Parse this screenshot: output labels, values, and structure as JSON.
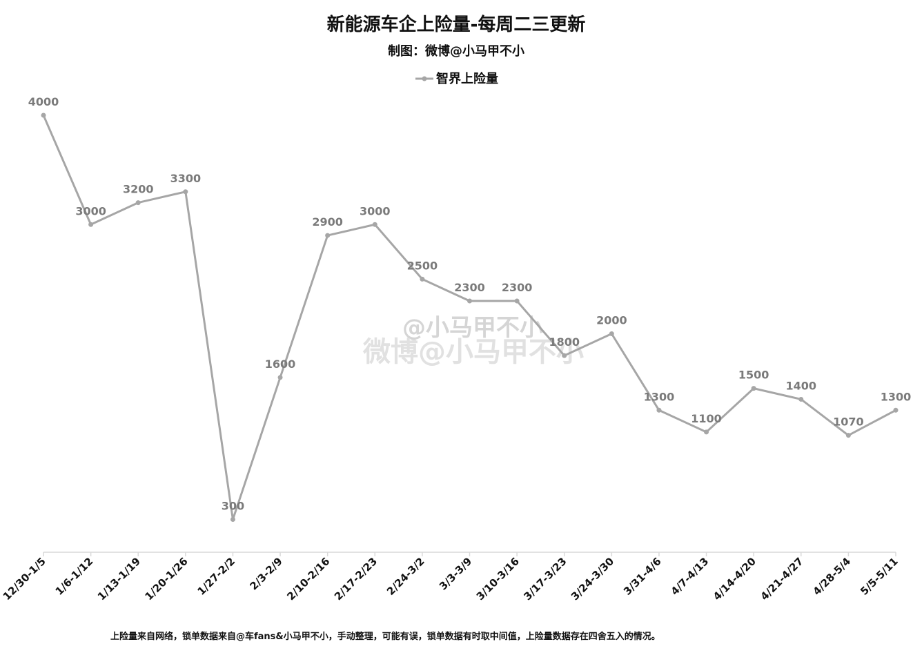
{
  "title": "新能源车企上险量-每周二三更新",
  "subtitle": "制图：微博@小马甲不小",
  "footnote": "上险量来自网络，锁单数据来自@车fans&小马甲不小，手动整理，可能有误，锁单数据有时取中间值，上险量数据存在四舍五入的情况。",
  "watermark": {
    "line1": "@小马甲不小",
    "line2": "微博@小马甲不小"
  },
  "colors": {
    "series": "#a6a6a6",
    "data_label": "#7a7a7a",
    "axis": "#d9d9d9"
  },
  "chart_data": {
    "type": "line",
    "title": "新能源车企上险量-每周二三更新",
    "subtitle": "制图：微博@小马甲不小",
    "xlabel": "",
    "ylabel": "",
    "ylim": [
      0,
      4000
    ],
    "grid": false,
    "legend_position": "top-center",
    "categories": [
      "12/30-1/5",
      "1/6-1/12",
      "1/13-1/19",
      "1/20-1/26",
      "1/27-2/2",
      "2/3-2/9",
      "2/10-2/16",
      "2/17-2/23",
      "2/24-3/2",
      "3/3-3/9",
      "3/10-3/16",
      "3/17-3/23",
      "3/24-3/30",
      "3/31-4/6",
      "4/7-4/13",
      "4/14-4/20",
      "4/21-4/27",
      "4/28-5/4",
      "5/5-5/11"
    ],
    "series": [
      {
        "name": "智界上险量",
        "values": [
          4000,
          3000,
          3200,
          3300,
          300,
          1600,
          2900,
          3000,
          2500,
          2300,
          2300,
          1800,
          2000,
          1300,
          1100,
          1500,
          1400,
          1070,
          1300
        ],
        "labels": [
          "4000",
          "3000",
          "3200",
          "3300",
          "300",
          "1600",
          "2900",
          "3000",
          "2500",
          "2300",
          "2300",
          "1800",
          "2000",
          "1300",
          "1100",
          "1500",
          "1400",
          "1070",
          "1300"
        ]
      }
    ]
  }
}
